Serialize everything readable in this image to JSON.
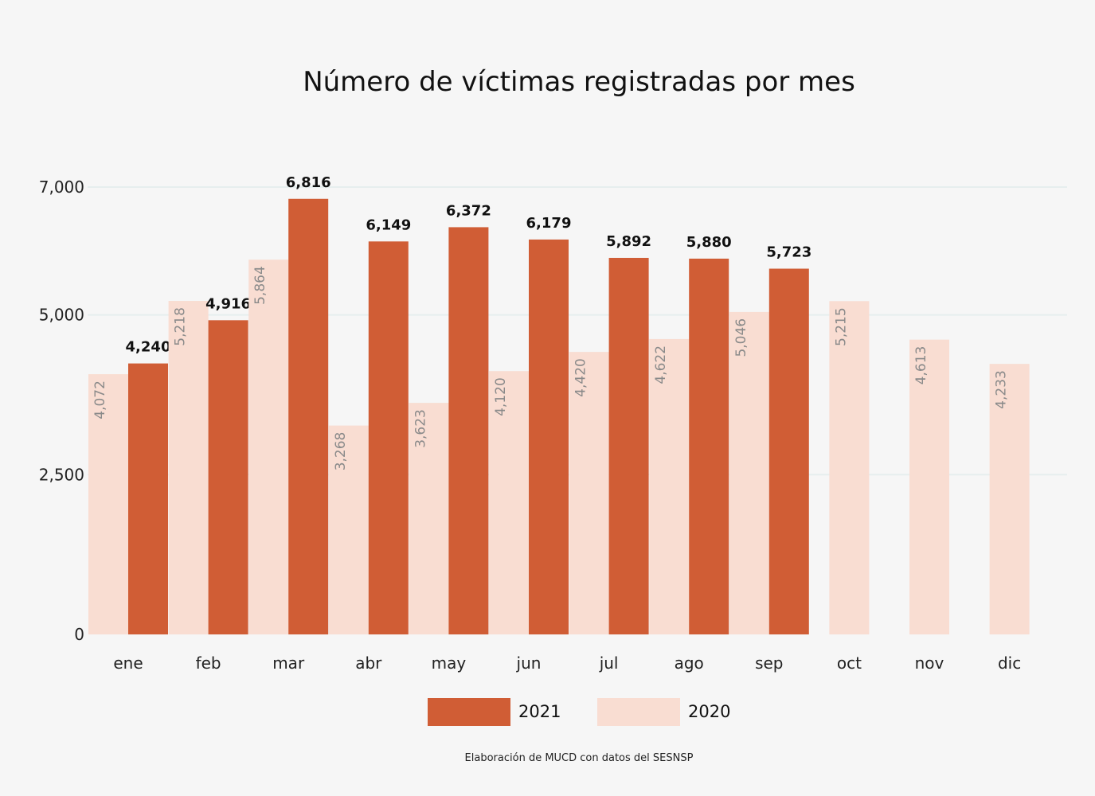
{
  "chart_data": {
    "type": "bar",
    "title": "Número de víctimas registradas por mes",
    "categories": [
      "ene",
      "feb",
      "mar",
      "abr",
      "may",
      "jun",
      "jul",
      "ago",
      "sep",
      "oct",
      "nov",
      "dic"
    ],
    "series": [
      {
        "name": "2020",
        "color": "#f9ddd2",
        "values": [
          4072,
          5218,
          5864,
          3268,
          3623,
          4120,
          4420,
          4622,
          5046,
          5215,
          4613,
          4233
        ],
        "labels": [
          "4,072",
          "5,218",
          "5,864",
          "3,268",
          "3,623",
          "4,120",
          "4,420",
          "4,622",
          "5,046",
          "5,215",
          "4,613",
          "4,233"
        ]
      },
      {
        "name": "2021",
        "color": "#d05d35",
        "values": [
          4240,
          4916,
          6816,
          6149,
          6372,
          6179,
          5892,
          5880,
          5723,
          null,
          null,
          null
        ],
        "labels": [
          "4,240",
          "4,916",
          "6,816",
          "6,149",
          "6,372",
          "6,179",
          "5,892",
          "5,880",
          "5,723",
          "",
          "",
          ""
        ]
      }
    ],
    "y_ticks": [
      0,
      2500,
      5000,
      7000
    ],
    "y_tick_labels": [
      "0",
      "2,500",
      "5,000",
      "7,000"
    ],
    "ylim": [
      0,
      7000
    ],
    "grid": true,
    "legend": {
      "position": "bottom-center",
      "entries": [
        "2021",
        "2020"
      ]
    },
    "source_note": "Elaboración de MUCD con datos del SESNSP"
  }
}
